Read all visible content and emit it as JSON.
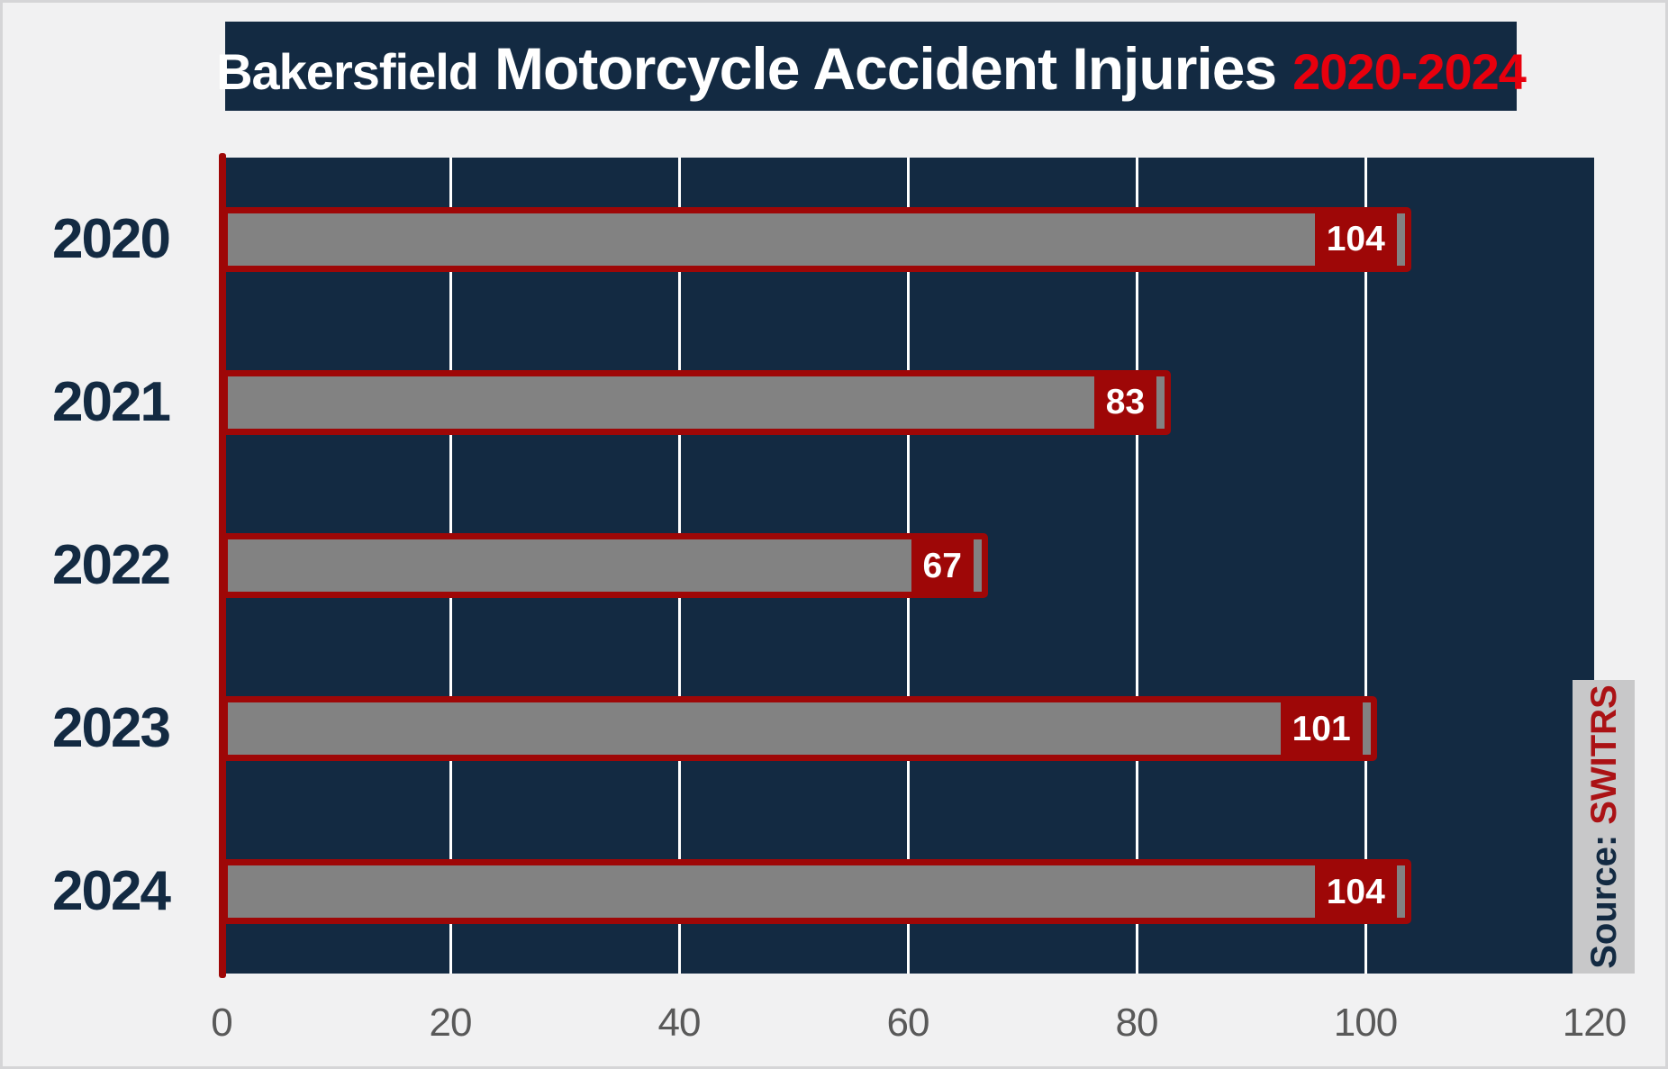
{
  "title": {
    "prefix": "Bakersfield",
    "main": "Motorcycle Accident Injuries",
    "period": "2020-2024"
  },
  "source": {
    "label": "Source:",
    "value": "SWITRS"
  },
  "chart_data": {
    "type": "bar",
    "orientation": "horizontal",
    "title": "Bakersfield Motorcycle Accident Injuries 2020-2024",
    "categories": [
      "2020",
      "2021",
      "2022",
      "2023",
      "2024"
    ],
    "values": [
      104,
      83,
      67,
      101,
      104
    ],
    "xlabel": "",
    "ylabel": "",
    "xlim": [
      0,
      120
    ],
    "xticks": [
      0,
      20,
      40,
      60,
      80,
      100,
      120
    ],
    "gridlines": [
      20,
      40,
      60,
      80,
      100
    ],
    "grid": true,
    "legend": false,
    "value_labels": "inside-end",
    "colors": {
      "page_bg": "#f1f1f2",
      "plot_bg": "#132a42",
      "title_bg": "#132a42",
      "title_text": "#ffffff",
      "title_period": "#e8000d",
      "bar_fill": "#828282",
      "bar_border": "#9e0707",
      "value_box_bg": "#9e0707",
      "value_text": "#ffffff",
      "gridline": "#ffffff",
      "axis_line": "#9e0707",
      "year_label": "#132a42",
      "tick_label": "#595959",
      "source_bg": "#c8c8c9",
      "source_label": "#132a42",
      "source_value": "#ab1215"
    }
  }
}
